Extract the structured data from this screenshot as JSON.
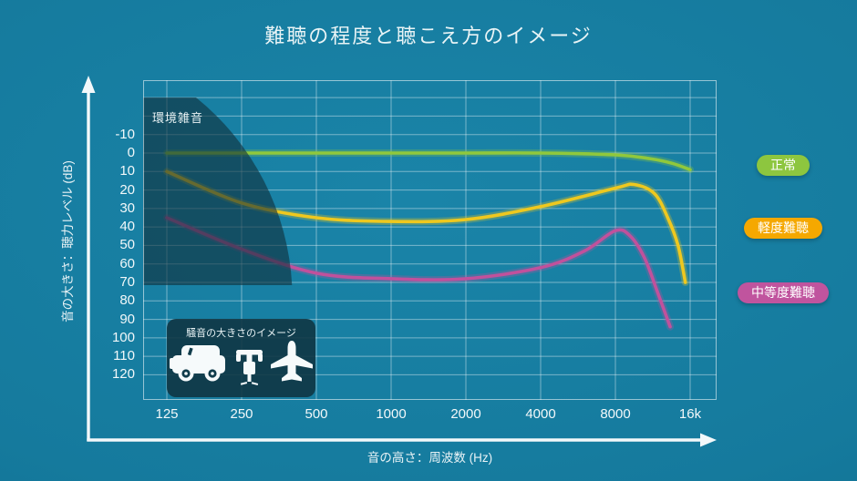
{
  "title": "難聴の程度と聴こえ方のイメージ",
  "colors": {
    "grid": "rgba(255,255,255,0.42)",
    "plot_border": "rgba(255,255,255,0.55)",
    "axis_arrow": "#f2f8fa",
    "noise_region_fill": "rgba(16,48,60,0.62)",
    "icon_fill": "#f6fafb",
    "icon_hole": "#113c4b"
  },
  "y_axis": {
    "label": "音の大きさ：聴力レベル (dB)",
    "tick_labels": [
      -10,
      0,
      10,
      20,
      30,
      40,
      50,
      60,
      70,
      80,
      90,
      100,
      110,
      120
    ],
    "extra_gridlines": [
      -30,
      -20
    ]
  },
  "x_axis": {
    "label": "音の高さ：周波数 (Hz)",
    "ticks": [
      {
        "label": "125",
        "hz": 125
      },
      {
        "label": "250",
        "hz": 250
      },
      {
        "label": "500",
        "hz": 500
      },
      {
        "label": "1000",
        "hz": 1000
      },
      {
        "label": "2000",
        "hz": 2000
      },
      {
        "label": "4000",
        "hz": 4000
      },
      {
        "label": "8000",
        "hz": 8000
      },
      {
        "label": "16k",
        "hz": 16000
      }
    ]
  },
  "legend": [
    {
      "id": "normal",
      "label": "正常",
      "color": "#8dc63f"
    },
    {
      "id": "mild",
      "label": "軽度難聴",
      "color": "#f5a800"
    },
    {
      "id": "moderate",
      "label": "中等度難聴",
      "color": "#c0549e"
    }
  ],
  "noise_region_label": "環境雑音",
  "noise_box": {
    "label": "騒音の大きさのイメージ",
    "icons": [
      "car-icon",
      "jackhammer-icon",
      "airplane-icon"
    ]
  },
  "chart_data": {
    "type": "line",
    "title": "難聴の程度と聴こえ方のイメージ",
    "xlabel": "音の高さ：周波数 (Hz)",
    "ylabel": "音の大きさ：聴力レベル (dB)",
    "x_scale": "log2",
    "x_ticks_hz": [
      125,
      250,
      500,
      1000,
      2000,
      4000,
      8000,
      16000
    ],
    "y_range_labeled": [
      -10,
      120
    ],
    "y_tick_step": 10,
    "y_axis_inverted": true,
    "grid": true,
    "legend_position": "right",
    "series": [
      {
        "name": "正常",
        "color": "#90c83c",
        "points": [
          [
            125,
            0
          ],
          [
            250,
            0
          ],
          [
            500,
            0
          ],
          [
            1000,
            0
          ],
          [
            2000,
            0
          ],
          [
            4000,
            0
          ],
          [
            8000,
            1
          ],
          [
            11000,
            3
          ],
          [
            13500,
            5.5
          ],
          [
            16000,
            9
          ]
        ]
      },
      {
        "name": "軽度難聴",
        "color": "#eec81f",
        "points": [
          [
            125,
            10
          ],
          [
            250,
            27
          ],
          [
            500,
            35
          ],
          [
            1000,
            37
          ],
          [
            2000,
            36
          ],
          [
            4000,
            29
          ],
          [
            8000,
            19
          ],
          [
            9500,
            17
          ],
          [
            11500,
            22
          ],
          [
            13000,
            35
          ],
          [
            14300,
            50
          ],
          [
            15300,
            70
          ]
        ]
      },
      {
        "name": "中等度難聴",
        "color": "#c0519c",
        "points": [
          [
            125,
            35
          ],
          [
            250,
            52
          ],
          [
            500,
            65
          ],
          [
            1000,
            68
          ],
          [
            2000,
            68
          ],
          [
            4000,
            62
          ],
          [
            6000,
            53
          ],
          [
            8000,
            42
          ],
          [
            9200,
            45
          ],
          [
            10500,
            57
          ],
          [
            11800,
            75
          ],
          [
            13300,
            94
          ]
        ]
      }
    ],
    "annotations": [
      {
        "label": "環境雑音",
        "meaning": "environmental-noise shaded region, upper-left of grid"
      },
      {
        "label": "騒音の大きさのイメージ",
        "meaning": "noise-loudness icon box: car, jackhammer, airplane"
      }
    ]
  }
}
